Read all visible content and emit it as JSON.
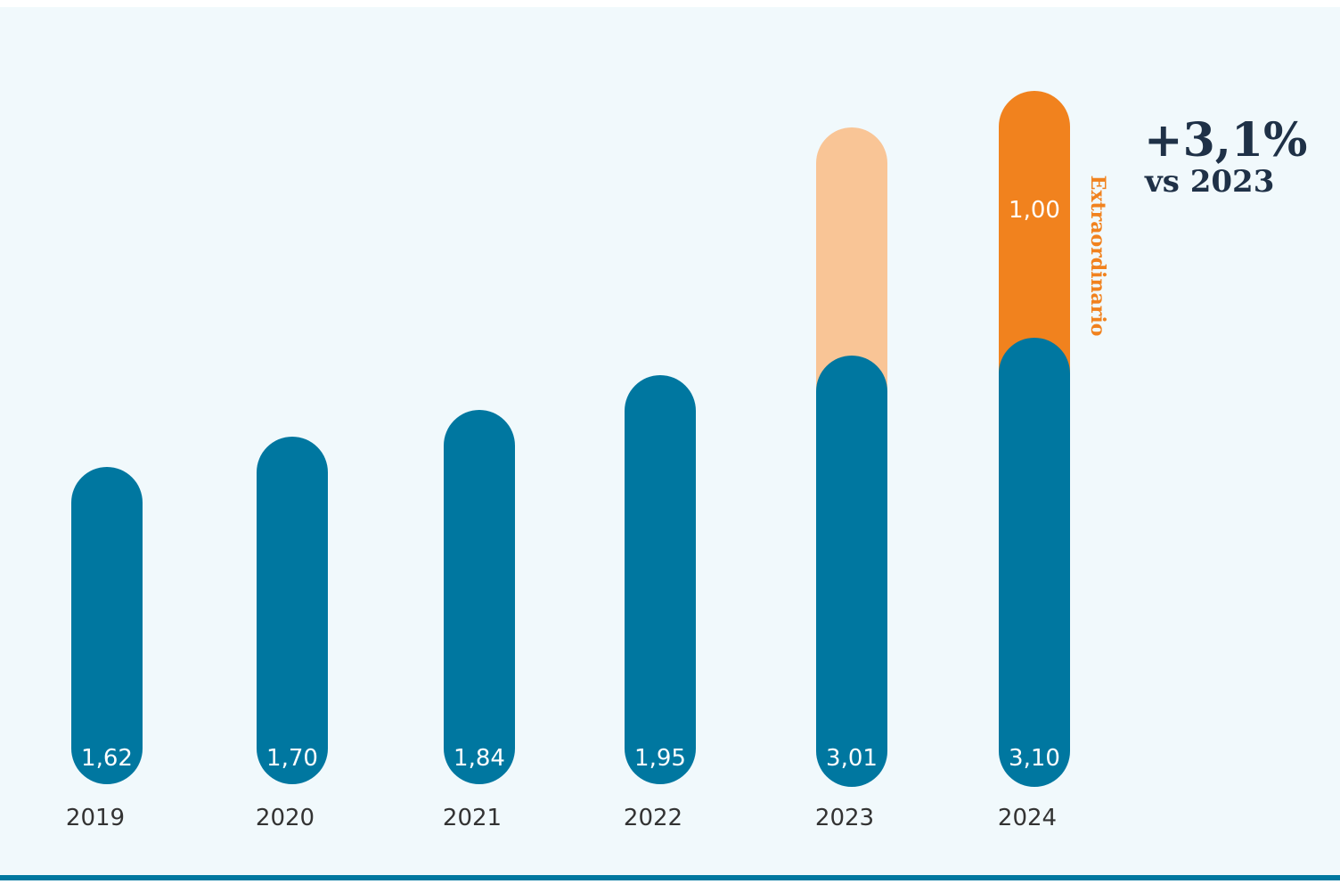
{
  "chart_data": {
    "type": "bar",
    "stacked": true,
    "categories": [
      "2019",
      "2020",
      "2021",
      "2022",
      "2023",
      "2024"
    ],
    "series": [
      {
        "values": [
          1.62,
          1.7,
          1.84,
          1.95,
          3.01,
          3.1
        ],
        "labels": [
          "1,62",
          "1,70",
          "1,84",
          "1,95",
          "3,01",
          "3,10"
        ]
      },
      {
        "name": "Extraordinario",
        "values": [
          0,
          0,
          0,
          0,
          1.0,
          1.0
        ],
        "labels": [
          "",
          "",
          "",
          "",
          "",
          "1,00"
        ]
      }
    ],
    "annotation": {
      "value": "+3,1%",
      "comparison": "vs 2023"
    },
    "legend": "none",
    "grid": false,
    "colors": {
      "base": "#0077a0",
      "extra_2023": "#f9c596",
      "extra_2024": "#f1821e",
      "annotation": "#1f3147",
      "extra_label": "#f1821e",
      "year_text": "#333333"
    }
  }
}
